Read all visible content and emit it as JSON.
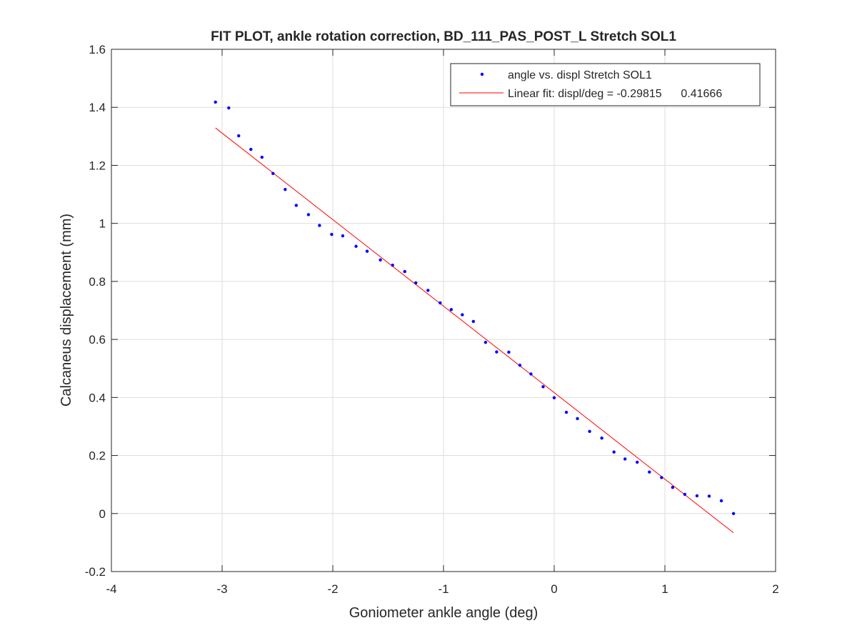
{
  "chart_data": {
    "type": "scatter",
    "title": "FIT PLOT, ankle rotation correction, BD_111_PAS_POST_L Stretch SOL1",
    "xlabel": "Goniometer ankle angle (deg)",
    "ylabel": "Calcaneus displacement (mm)",
    "xlim": [
      -4,
      2
    ],
    "ylim": [
      -0.2,
      1.6
    ],
    "xticks": [
      -4,
      -3,
      -2,
      -1,
      0,
      1,
      2
    ],
    "xtick_labels": [
      "-4",
      "-3",
      "-2",
      "-1",
      "0",
      "1",
      "2"
    ],
    "yticks": [
      -0.2,
      0,
      0.2,
      0.4,
      0.6,
      0.8,
      1.0,
      1.2,
      1.4,
      1.6
    ],
    "ytick_labels": [
      "-0.2",
      "0",
      "0.2",
      "0.4",
      "0.6",
      "0.8",
      "1",
      "1.2",
      "1.4",
      "1.6"
    ],
    "grid": true,
    "legend_position": "top-right",
    "series": [
      {
        "name": "angle vs. displ Stretch SOL1",
        "type": "scatter",
        "color": "#0000ff",
        "x": [
          -3.06,
          -2.94,
          -2.85,
          -2.74,
          -2.64,
          -2.54,
          -2.43,
          -2.33,
          -2.22,
          -2.12,
          -2.01,
          -1.91,
          -1.79,
          -1.69,
          -1.57,
          -1.46,
          -1.35,
          -1.25,
          -1.14,
          -1.03,
          -0.93,
          -0.83,
          -0.73,
          -0.62,
          -0.52,
          -0.41,
          -0.31,
          -0.21,
          -0.1,
          0.0,
          0.11,
          0.21,
          0.32,
          0.43,
          0.54,
          0.64,
          0.75,
          0.86,
          0.97,
          1.07,
          1.18,
          1.29,
          1.4,
          1.51,
          1.62
        ],
        "y": [
          1.418,
          1.398,
          1.302,
          1.255,
          1.228,
          1.172,
          1.117,
          1.062,
          1.03,
          0.993,
          0.962,
          0.957,
          0.921,
          0.904,
          0.874,
          0.856,
          0.834,
          0.795,
          0.769,
          0.726,
          0.703,
          0.685,
          0.662,
          0.59,
          0.557,
          0.556,
          0.511,
          0.481,
          0.437,
          0.399,
          0.349,
          0.327,
          0.283,
          0.26,
          0.212,
          0.188,
          0.177,
          0.143,
          0.124,
          0.09,
          0.066,
          0.061,
          0.06,
          0.044,
          0.0
        ]
      },
      {
        "name": "Linear fit: displ/deg = -0.29815      0.41666",
        "type": "line",
        "color": "#ff0000",
        "slope": -0.29815,
        "intercept": 0.41666,
        "x": [
          -3.06,
          1.62
        ]
      }
    ]
  }
}
